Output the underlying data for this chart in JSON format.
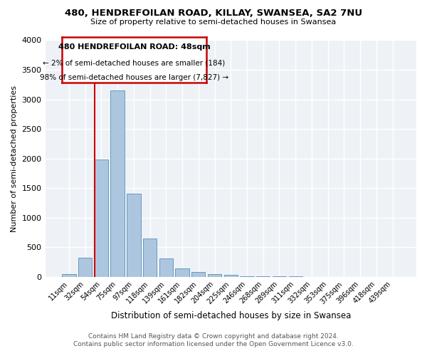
{
  "title": "480, HENDREFOILAN ROAD, KILLAY, SWANSEA, SA2 7NU",
  "subtitle": "Size of property relative to semi-detached houses in Swansea",
  "xlabel": "Distribution of semi-detached houses by size in Swansea",
  "ylabel": "Number of semi-detached properties",
  "bin_labels": [
    "11sqm",
    "32sqm",
    "54sqm",
    "75sqm",
    "97sqm",
    "118sqm",
    "139sqm",
    "161sqm",
    "182sqm",
    "204sqm",
    "225sqm",
    "246sqm",
    "268sqm",
    "289sqm",
    "311sqm",
    "332sqm",
    "353sqm",
    "375sqm",
    "396sqm",
    "418sqm",
    "439sqm"
  ],
  "bar_values": [
    50,
    320,
    1980,
    3150,
    1400,
    650,
    310,
    140,
    80,
    50,
    30,
    10,
    5,
    5,
    5,
    3,
    2,
    2,
    2,
    2,
    2
  ],
  "bar_color": "#adc6e0",
  "bar_edge_color": "#6699bb",
  "ylim": [
    0,
    4000
  ],
  "yticks": [
    0,
    500,
    1000,
    1500,
    2000,
    2500,
    3000,
    3500,
    4000
  ],
  "vline_color": "#cc0000",
  "annotation_title": "480 HENDREFOILAN ROAD: 48sqm",
  "annotation_line1": "← 2% of semi-detached houses are smaller (184)",
  "annotation_line2": "98% of semi-detached houses are larger (7,827) →",
  "annotation_box_color": "#cc0000",
  "footer_line1": "Contains HM Land Registry data © Crown copyright and database right 2024.",
  "footer_line2": "Contains public sector information licensed under the Open Government Licence v3.0.",
  "background_color": "#eef2f7"
}
